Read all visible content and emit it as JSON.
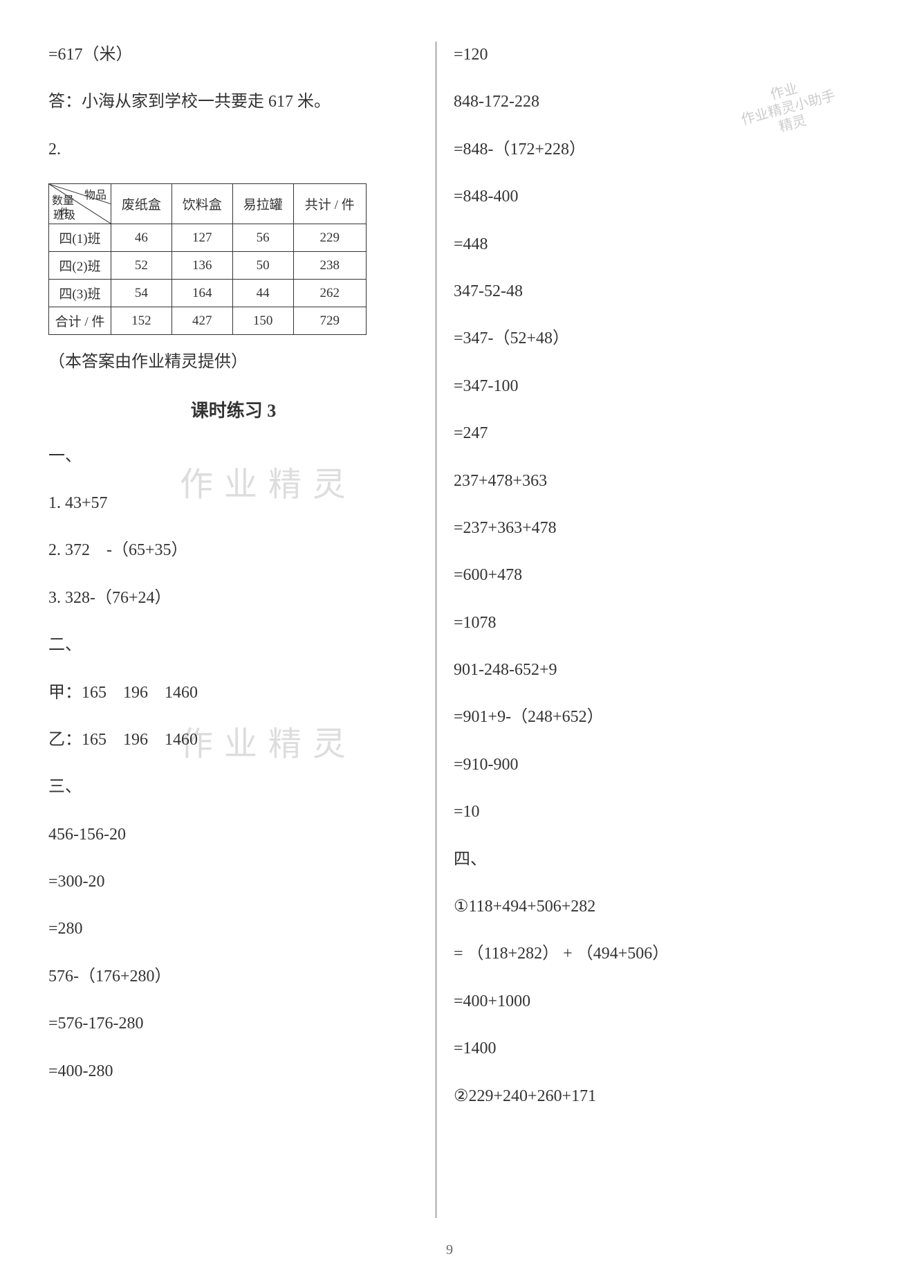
{
  "left": {
    "line1": "=617（米）",
    "line2": "答：小海从家到学校一共要走 617 米。",
    "line3": "2.",
    "table": {
      "diag": {
        "top": "物品",
        "mid": "数量\n/件",
        "bottom": "班级"
      },
      "headers": [
        "废纸盒",
        "饮料盒",
        "易拉罐",
        "共计 / 件"
      ],
      "rows": [
        {
          "label": "四(1)班",
          "cells": [
            "46",
            "127",
            "56",
            "229"
          ]
        },
        {
          "label": "四(2)班",
          "cells": [
            "52",
            "136",
            "50",
            "238"
          ]
        },
        {
          "label": "四(3)班",
          "cells": [
            "54",
            "164",
            "44",
            "262"
          ]
        },
        {
          "label": "合计 / 件",
          "cells": [
            "152",
            "427",
            "150",
            "729"
          ]
        }
      ]
    },
    "note": "（本答案由作业精灵提供）",
    "title": "课时练习 3",
    "s1": "一、",
    "s1_1": "1. 43+57",
    "s1_2": "2. 372　-（65+35）",
    "s1_3": "3. 328-（76+24）",
    "s2": "二、",
    "s2_1": "甲：165　196　1460",
    "s2_2": "乙：165　196　1460",
    "s3": "三、",
    "s3_1": "456-156-20",
    "s3_2": "=300-20",
    "s3_3": "=280",
    "s3_4": "576-（176+280）",
    "s3_5": "=576-176-280",
    "s3_6": "=400-280"
  },
  "right": {
    "r1": "=120",
    "r2": "848-172-228",
    "r3": "=848-（172+228）",
    "r4": "=848-400",
    "r5": "=448",
    "r6": "347-52-48",
    "r7": "=347-（52+48）",
    "r8": "=347-100",
    "r9": "=247",
    "r10": "237+478+363",
    "r11": "=237+363+478",
    "r12": "=600+478",
    "r13": "=1078",
    "r14": "901-248-652+9",
    "r15": "=901+9-（248+652）",
    "r16": "=910-900",
    "r17": "=10",
    "s4": "四、",
    "r18": "①118+494+506+282",
    "r19": "= （118+282） + （494+506）",
    "r20": "=400+1000",
    "r21": "=1400",
    "r22": "②229+240+260+171"
  },
  "page_number": "9",
  "watermark_text": "作业精灵",
  "stamp_line1": "作业",
  "stamp_line2": "作业精灵小助手",
  "stamp_line3": "精灵"
}
